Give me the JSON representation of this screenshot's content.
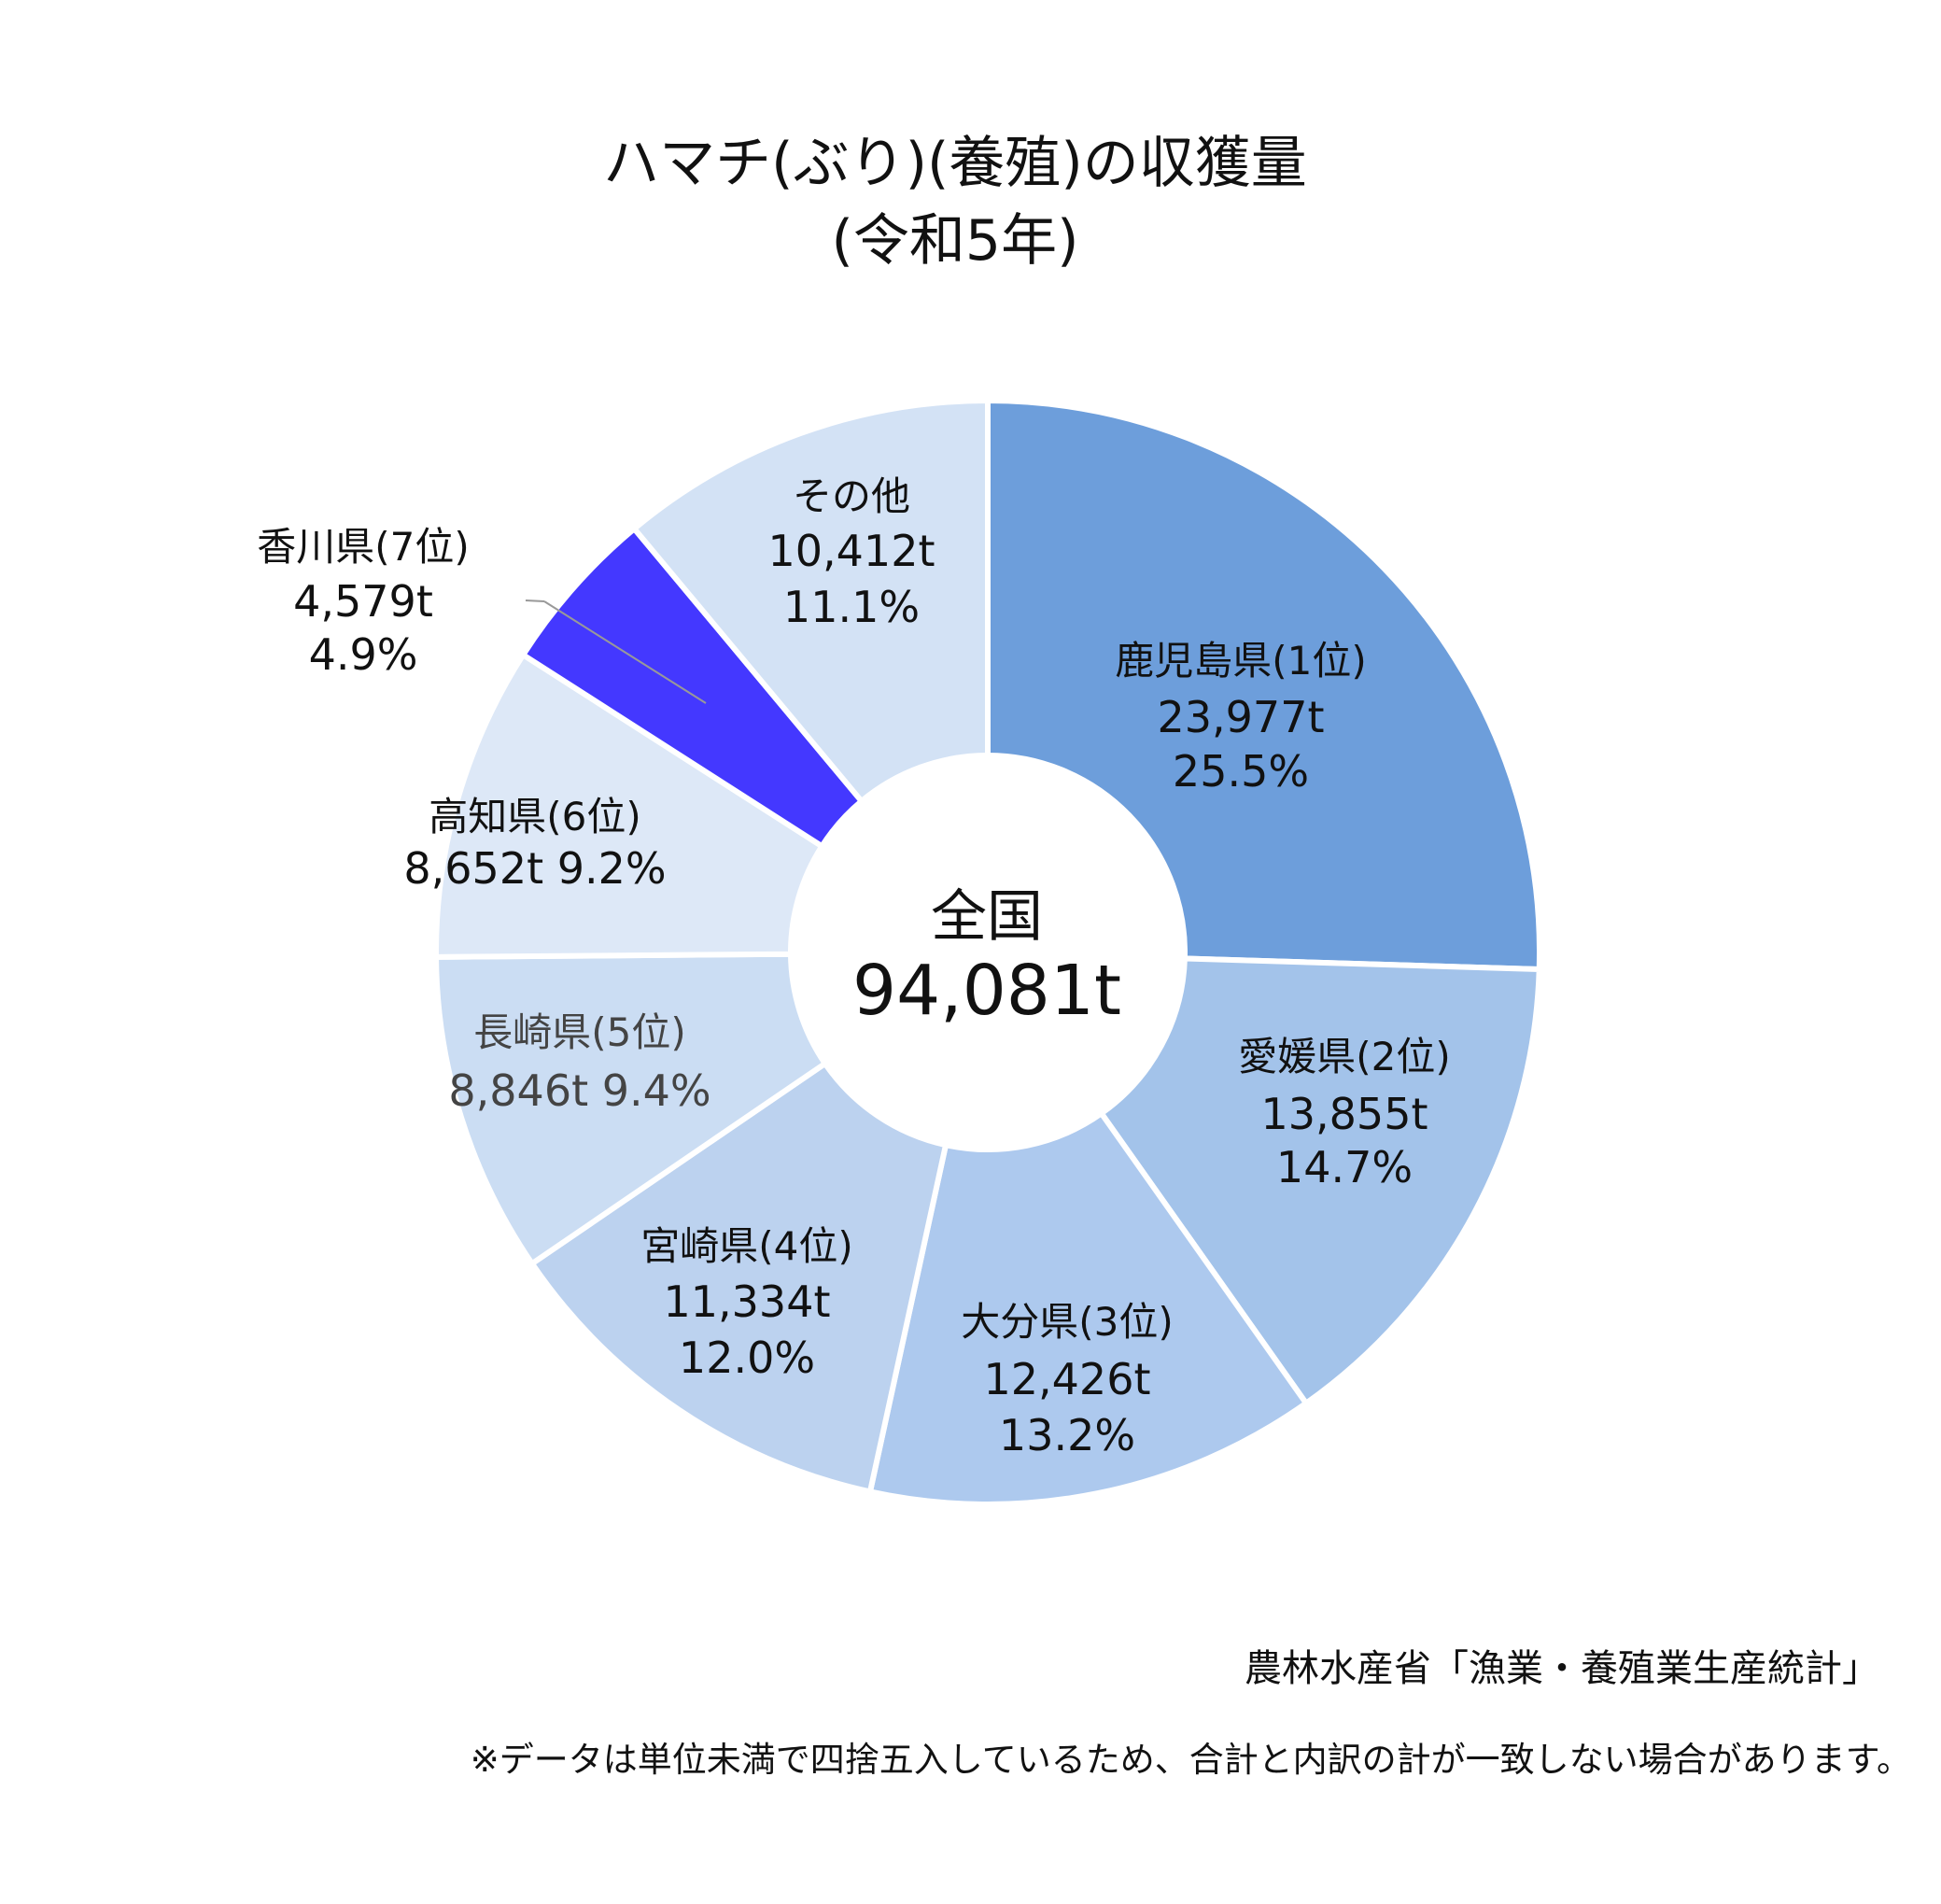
{
  "chart_data": {
    "type": "pie",
    "donut": true,
    "title": [
      "ハマチ(ぶり)(養殖)の収獲量",
      "(令和5年)"
    ],
    "center_label": {
      "name": "全国",
      "value": "94,081t"
    },
    "slices": [
      {
        "name": "鹿児島県(1位)",
        "value": 23977,
        "value_label": "23,977t",
        "percent": 25.5,
        "percent_label": "25.5%",
        "color": "#6d9edb"
      },
      {
        "name": "愛媛県(2位)",
        "value": 13855,
        "value_label": "13,855t",
        "percent": 14.7,
        "percent_label": "14.7%",
        "color": "#a3c3ea"
      },
      {
        "name": "大分県(3位)",
        "value": 12426,
        "value_label": "12,426t",
        "percent": 13.2,
        "percent_label": "13.2%",
        "color": "#adc9ee"
      },
      {
        "name": "宮崎県(4位)",
        "value": 11334,
        "value_label": "11,334t",
        "percent": 12.0,
        "percent_label": "12.0%",
        "color": "#bcd2ef"
      },
      {
        "name": "長崎県(5位)",
        "value": 8846,
        "value_label": "8,846t",
        "percent": 9.4,
        "percent_label": "9.4%",
        "color": "#cbddf3"
      },
      {
        "name": "高知県(6位)",
        "value": 8652,
        "value_label": "8,652t",
        "percent": 9.2,
        "percent_label": "9.2%",
        "color": "#dde8f7"
      },
      {
        "name": "香川県(7位)",
        "value": 4579,
        "value_label": "4,579t",
        "percent": 4.9,
        "percent_label": "4.9%",
        "color": "#4438ff"
      },
      {
        "name": "その他",
        "value": 10412,
        "value_label": "10,412t",
        "percent": 11.1,
        "percent_label": "11.1%",
        "color": "#d3e2f5"
      }
    ],
    "source": "農林水産省「漁業・養殖業生産統計」",
    "note": "※データは単位未満で四捨五入しているため、合計と内訳の計が一致しない場合があります。"
  }
}
